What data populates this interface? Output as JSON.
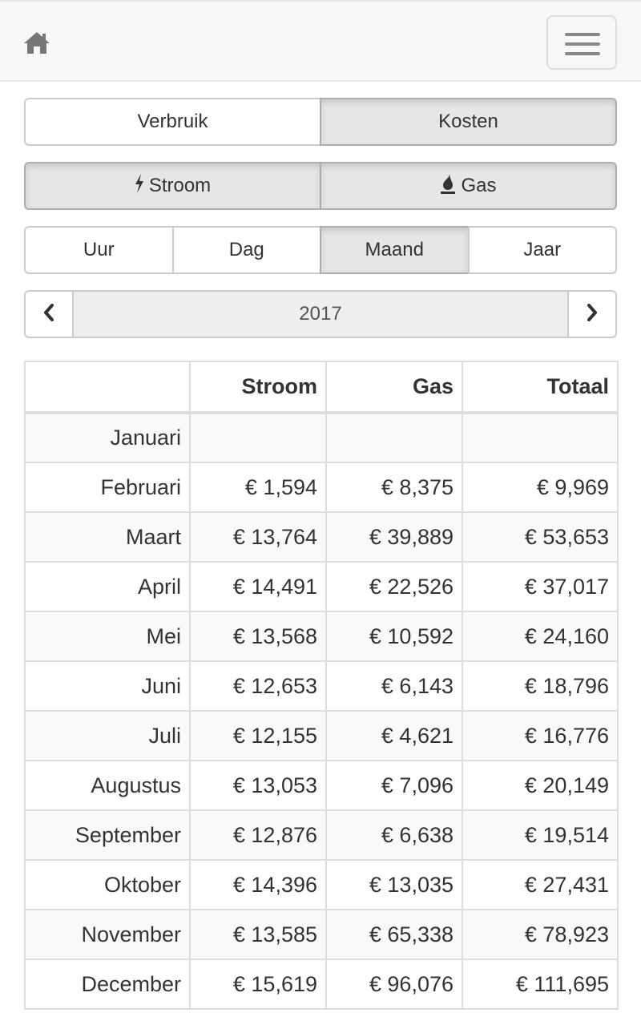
{
  "navbar": {
    "home_icon": "home-icon",
    "menu_icon": "hamburger-menu-icon"
  },
  "view_toggle": {
    "items": [
      {
        "label": "Verbruik",
        "active": false
      },
      {
        "label": "Kosten",
        "active": true
      }
    ]
  },
  "type_toggle": {
    "items": [
      {
        "label": "Stroom",
        "icon": "lightning-bolt-icon",
        "active": true
      },
      {
        "label": "Gas",
        "icon": "fire-icon",
        "active": true
      }
    ]
  },
  "period_toggle": {
    "items": [
      {
        "label": "Uur",
        "active": false
      },
      {
        "label": "Dag",
        "active": false
      },
      {
        "label": "Maand",
        "active": true
      },
      {
        "label": "Jaar",
        "active": false
      }
    ]
  },
  "year_nav": {
    "year": "2017",
    "prev_icon": "chevron-left-icon",
    "next_icon": "chevron-right-icon"
  },
  "table": {
    "headers": [
      "",
      "Stroom",
      "Gas",
      "Totaal"
    ],
    "rows": [
      {
        "month": "Januari",
        "stroom": "",
        "gas": "",
        "totaal": ""
      },
      {
        "month": "Februari",
        "stroom": "€ 1,594",
        "gas": "€ 8,375",
        "totaal": "€ 9,969"
      },
      {
        "month": "Maart",
        "stroom": "€ 13,764",
        "gas": "€ 39,889",
        "totaal": "€ 53,653"
      },
      {
        "month": "April",
        "stroom": "€ 14,491",
        "gas": "€ 22,526",
        "totaal": "€ 37,017"
      },
      {
        "month": "Mei",
        "stroom": "€ 13,568",
        "gas": "€ 10,592",
        "totaal": "€ 24,160"
      },
      {
        "month": "Juni",
        "stroom": "€ 12,653",
        "gas": "€ 6,143",
        "totaal": "€ 18,796"
      },
      {
        "month": "Juli",
        "stroom": "€ 12,155",
        "gas": "€ 4,621",
        "totaal": "€ 16,776"
      },
      {
        "month": "Augustus",
        "stroom": "€ 13,053",
        "gas": "€ 7,096",
        "totaal": "€ 20,149"
      },
      {
        "month": "September",
        "stroom": "€ 12,876",
        "gas": "€ 6,638",
        "totaal": "€ 19,514"
      },
      {
        "month": "Oktober",
        "stroom": "€ 14,396",
        "gas": "€ 13,035",
        "totaal": "€ 27,431"
      },
      {
        "month": "November",
        "stroom": "€ 13,585",
        "gas": "€ 65,338",
        "totaal": "€ 78,923"
      },
      {
        "month": "December",
        "stroom": "€ 15,619",
        "gas": "€ 96,076",
        "totaal": "€ 111,695"
      }
    ]
  }
}
